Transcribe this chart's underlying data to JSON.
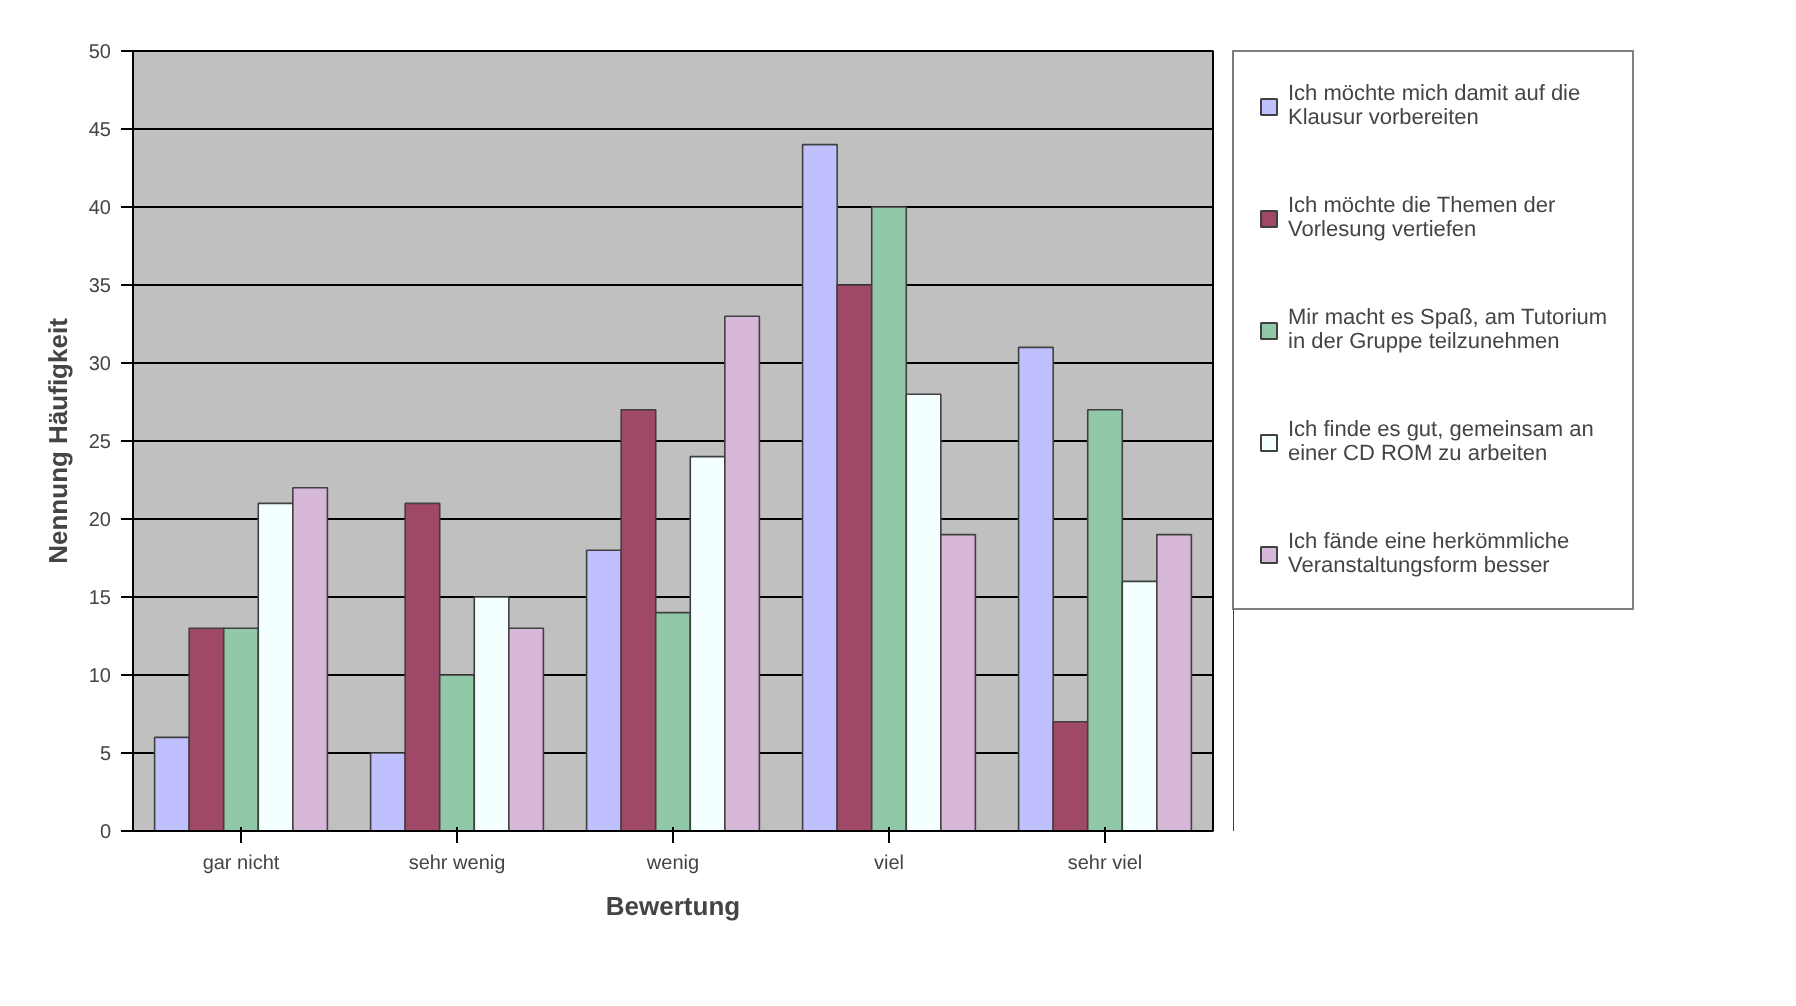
{
  "chart_data": {
    "type": "bar",
    "xlabel": "Bewertung",
    "ylabel": "Nennung Häufigkeit",
    "categories": [
      "gar nicht",
      "sehr wenig",
      "wenig",
      "viel",
      "sehr viel"
    ],
    "series": [
      {
        "name": "Ich möchte mich damit auf die Klausur vorbereiten",
        "color": "#c0c0ff",
        "values": [
          6,
          5,
          18,
          44,
          31
        ]
      },
      {
        "name": "Ich möchte die Themen der Vorlesung vertiefen",
        "color": "#a04868",
        "values": [
          13,
          21,
          27,
          35,
          7
        ]
      },
      {
        "name": "Mir macht es Spaß, am Tutorium in der Gruppe teilzunehmen",
        "color": "#90c8a8",
        "values": [
          13,
          10,
          14,
          40,
          27
        ]
      },
      {
        "name": "Ich finde es gut, gemeinsam an einer CD ROM zu arbeiten",
        "color": "#f4ffff",
        "values": [
          21,
          15,
          24,
          28,
          16
        ]
      },
      {
        "name": "Ich fände eine herkömmliche Veranstaltungsform besser",
        "color": "#d8b8d8",
        "values": [
          22,
          13,
          33,
          19,
          19
        ]
      }
    ],
    "ylim": [
      0,
      50
    ],
    "yticks": [
      0,
      5,
      10,
      15,
      20,
      25,
      30,
      35,
      40,
      45,
      50
    ],
    "grid": "y",
    "legend": "right"
  }
}
